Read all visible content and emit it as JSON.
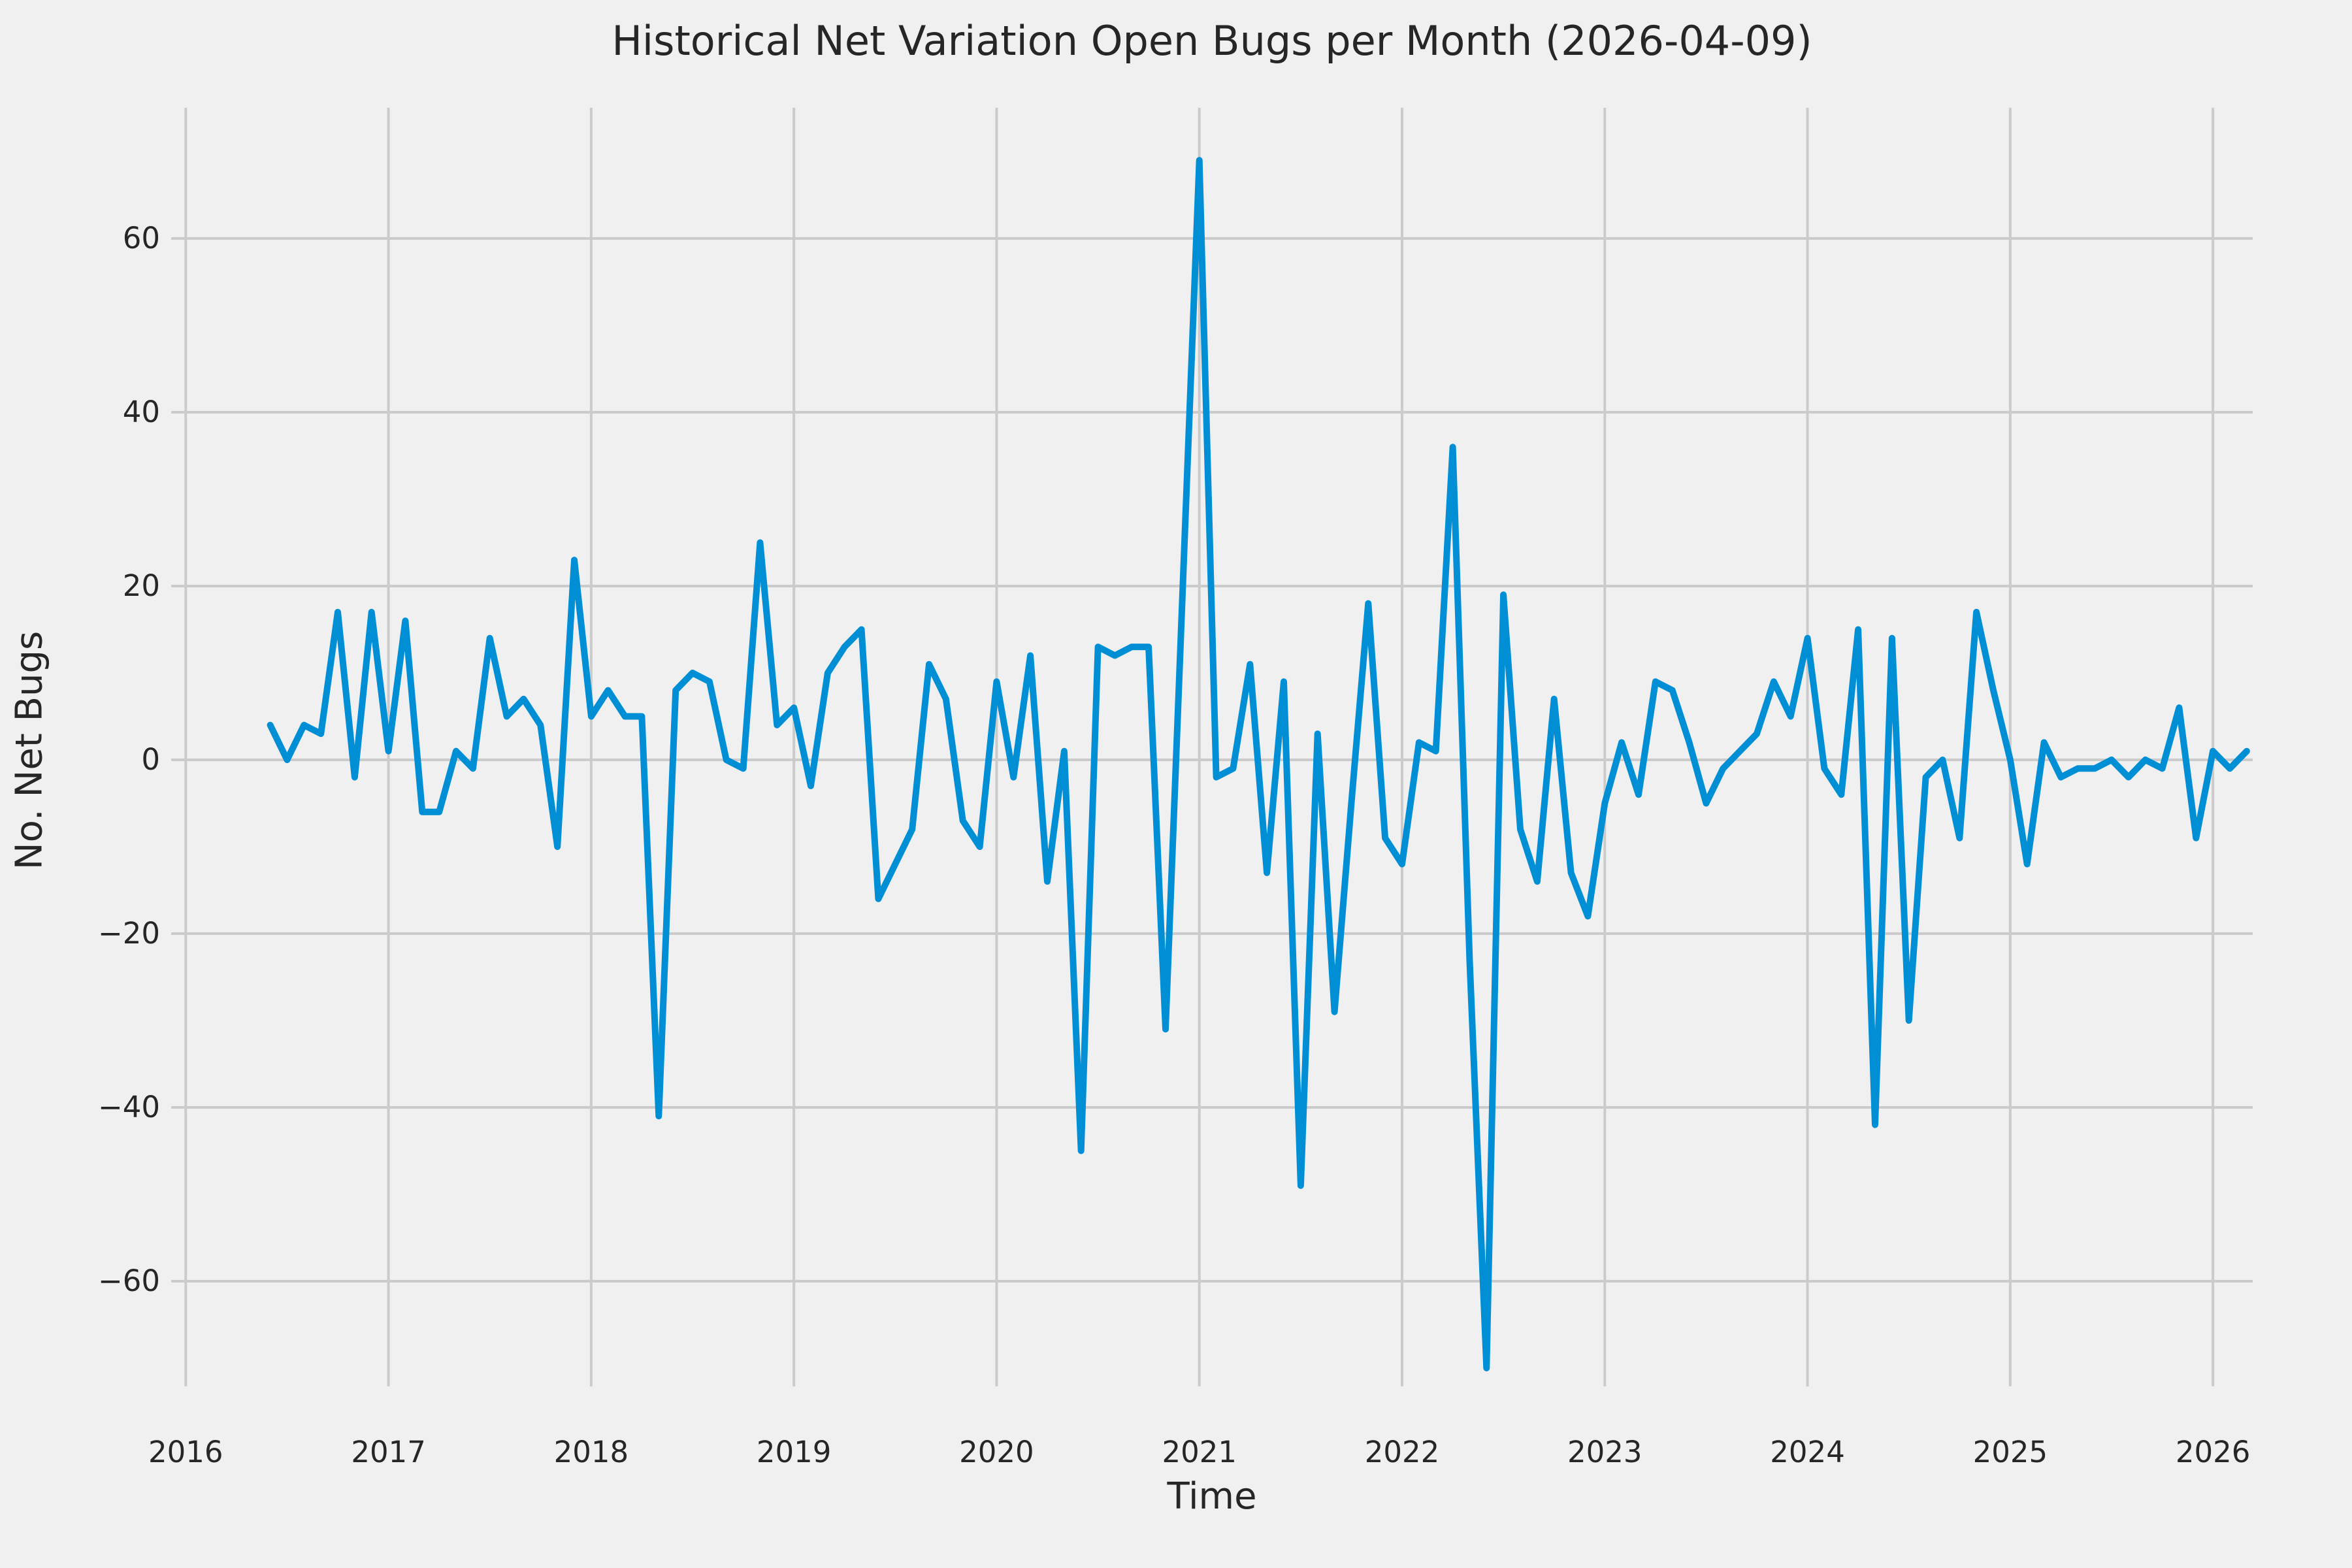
{
  "title": "Historical Net Variation Open Bugs per Month (2026-04-09)",
  "chart_data": {
    "type": "line",
    "title": "Historical Net Variation Open Bugs per Month (2026-04-09)",
    "xlabel": "Time",
    "ylabel": "No. Net Bugs",
    "grid": true,
    "legend_position": "none",
    "x_ticks": [
      2016,
      2017,
      2018,
      2019,
      2020,
      2021,
      2022,
      2023,
      2024,
      2025,
      2026
    ],
    "x_tick_labels": [
      "2016",
      "2017",
      "2018",
      "2019",
      "2020",
      "2021",
      "2022",
      "2023",
      "2024",
      "2025",
      "2026"
    ],
    "y_ticks": [
      -60,
      -40,
      -20,
      0,
      20,
      40,
      60
    ],
    "y_tick_labels": [
      "−60",
      "−40",
      "−20",
      "0",
      "20",
      "40",
      "60"
    ],
    "ylim": [
      -75,
      73.5
    ],
    "xlim_years": [
      2015.93,
      2026.27
    ],
    "colors": {
      "line": "#008fd5",
      "grid": "#cbcbcb",
      "background": "#f0f0f0",
      "text": "#262626"
    },
    "series": [
      {
        "name": "net_open_bugs_variation",
        "start": "2016-06",
        "freq": "monthly",
        "values": [
          4,
          0,
          4,
          3,
          17,
          -2,
          17,
          1,
          16,
          -6,
          -6,
          1,
          -1,
          14,
          5,
          7,
          4,
          -10,
          23,
          5,
          8,
          5,
          5,
          -41,
          8,
          10,
          9,
          0,
          -1,
          25,
          4,
          6,
          -3,
          10,
          13,
          15,
          -16,
          -12,
          -8,
          11,
          7,
          -7,
          -10,
          9,
          -2,
          12,
          -14,
          1,
          -45,
          13,
          12,
          13,
          13,
          -31,
          19,
          69,
          -2,
          -1,
          11,
          -13,
          9,
          -49,
          3,
          -29,
          -5,
          18,
          -9,
          -12,
          2,
          1,
          36,
          -23,
          -70,
          19,
          -8,
          -14,
          7,
          -13,
          -18,
          -5,
          2,
          -4,
          9,
          8,
          2,
          -5,
          -1,
          1,
          3,
          9,
          5,
          14,
          -1,
          -4,
          15,
          -42,
          14,
          -30,
          -2,
          0,
          -9,
          17,
          8,
          0,
          -12,
          2,
          -2,
          -1,
          -1,
          0,
          -2,
          0,
          -1,
          6,
          -9,
          1,
          -1,
          1
        ]
      }
    ]
  }
}
